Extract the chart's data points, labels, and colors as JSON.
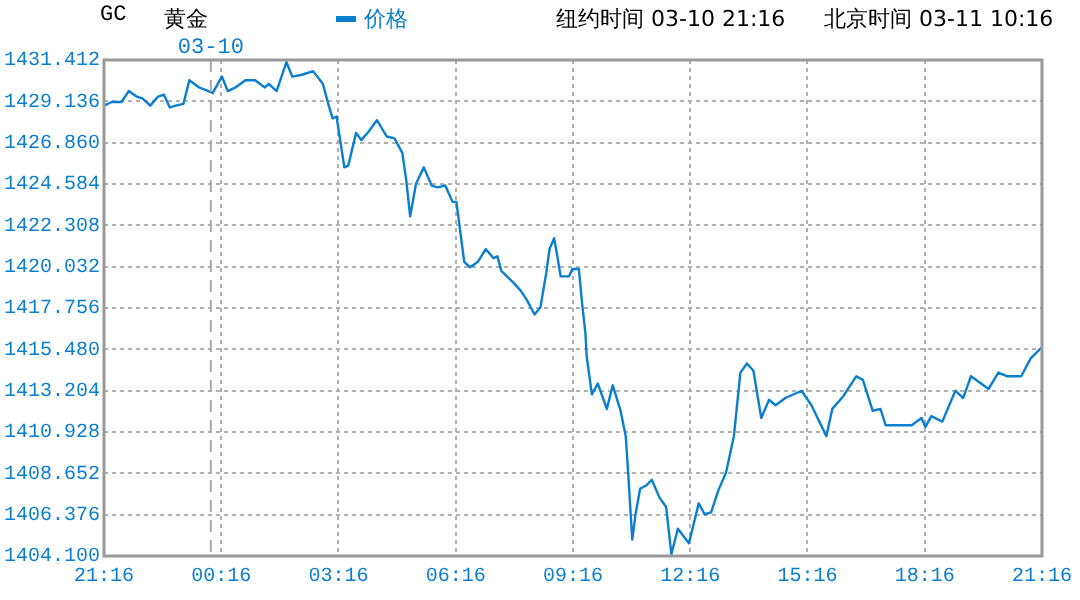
{
  "chart_data": {
    "type": "line",
    "title": "GC",
    "subtitle": "黄金",
    "annotations": [
      "纽约时间 03-10 21:16",
      "北京时间 03-11 10:16"
    ],
    "x": [
      "--03-09T21:16",
      "--03-09T21:28",
      "--03-09T21:43",
      "--03-09T21:54",
      "--03-09T22:06",
      "--03-09T22:15",
      "--03-09T22:27",
      "--03-09T22:39",
      "--03-09T22:48",
      "--03-09T22:57",
      "--03-09T23:06",
      "--03-09T23:18",
      "--03-09T23:27",
      "--03-09T23:42",
      "--03-10T00:03",
      "--03-10T00:17",
      "--03-10T00:26",
      "--03-10T00:38",
      "--03-10T00:53",
      "--03-10T01:08",
      "--03-10T01:23",
      "--03-10T01:29",
      "--03-10T01:41",
      "--03-10T01:56",
      "--03-10T02:05",
      "--03-10T02:20",
      "--03-10T02:37",
      "--03-10T02:52",
      "--03-10T03:01",
      "--03-10T03:07",
      "--03-10T03:13",
      "--03-10T03:25",
      "--03-10T03:31",
      "--03-10T03:43",
      "--03-10T03:51",
      "--03-10T04:03",
      "--03-10T04:15",
      "--03-10T04:30",
      "--03-10T04:42",
      "--03-10T04:54",
      "--03-10T05:00",
      "--03-10T05:06",
      "--03-10T05:15",
      "--03-10T05:27",
      "--03-10T05:39",
      "--03-10T05:48",
      "--03-10T06:00",
      "--03-10T06:11",
      "--03-10T06:17",
      "--03-10T06:29",
      "--03-10T06:38",
      "--03-10T06:50",
      "--03-10T07:02",
      "--03-10T07:14",
      "--03-10T07:20",
      "--03-10T07:26",
      "--03-10T07:46",
      "--03-10T07:56",
      "--03-10T08:05",
      "--03-10T08:17",
      "--03-10T08:26",
      "--03-10T08:35",
      "--03-10T08:40",
      "--03-10T08:47",
      "--03-10T08:52",
      "--03-10T08:57",
      "--03-10T09:10",
      "--03-10T09:15",
      "--03-10T09:25",
      "--03-10T09:30",
      "--03-10T09:35",
      "--03-10T09:37",
      "--03-10T09:45",
      "--03-10T09:54",
      "--03-10T10:08",
      "--03-10T10:17",
      "--03-10T10:29",
      "--03-10T10:37",
      "--03-10T10:41",
      "--03-10T10:47",
      "--03-10T10:52",
      "--03-10T10:59",
      "--03-10T11:09",
      "--03-10T11:17",
      "--03-10T11:29",
      "--03-10T11:39",
      "--03-10T11:47",
      "--03-10T11:57",
      "--03-10T12:14",
      "--03-10T12:29",
      "--03-10T12:38",
      "--03-10T12:48",
      "--03-10T12:59",
      "--03-10T13:11",
      "--03-10T13:23",
      "--03-10T13:33",
      "--03-10T13:43",
      "--03-10T13:53",
      "--03-10T14:05",
      "--03-10T14:17",
      "--03-10T14:27",
      "--03-10T14:42",
      "--03-10T15:07",
      "--03-10T15:22",
      "--03-10T15:45",
      "--03-10T15:54",
      "--03-10T16:11",
      "--03-10T16:31",
      "--03-10T16:41",
      "--03-10T16:56",
      "--03-10T17:08",
      "--03-10T17:16",
      "--03-10T17:56",
      "--03-10T18:11",
      "--03-10T18:17",
      "--03-10T18:26",
      "--03-10T18:43",
      "--03-10T19:03",
      "--03-10T19:15",
      "--03-10T19:27",
      "--03-10T19:54",
      "--03-10T20:09",
      "--03-10T20:22",
      "--03-10T20:44",
      "--03-10T20:59",
      "--03-10T21:16"
    ],
    "series": [
      {
        "name": "价格",
        "color": "#0a7fd0",
        "values": [
          1428.9,
          1429.1,
          1429.1,
          1429.7,
          1429.4,
          1429.3,
          1428.9,
          1429.4,
          1429.5,
          1428.8,
          1428.9,
          1429.0,
          1430.3,
          1429.9,
          1429.6,
          1430.5,
          1429.7,
          1429.9,
          1430.3,
          1430.3,
          1429.9,
          1430.1,
          1429.7,
          1431.3,
          1430.5,
          1430.6,
          1430.8,
          1430.1,
          1428.9,
          1428.2,
          1428.3,
          1425.5,
          1425.6,
          1427.4,
          1427.0,
          1427.5,
          1428.1,
          1427.2,
          1427.1,
          1426.3,
          1424.8,
          1422.8,
          1424.6,
          1425.5,
          1424.5,
          1424.4,
          1424.5,
          1423.6,
          1423.6,
          1420.3,
          1420.0,
          1420.3,
          1421.0,
          1420.5,
          1420.6,
          1419.8,
          1419.1,
          1418.7,
          1418.2,
          1417.4,
          1417.8,
          1419.7,
          1421.0,
          1421.6,
          1420.6,
          1419.5,
          1419.5,
          1419.9,
          1419.9,
          1418.0,
          1416.4,
          1415.1,
          1413.0,
          1413.6,
          1412.2,
          1413.5,
          1412.1,
          1410.7,
          1408.5,
          1405.0,
          1406.4,
          1407.8,
          1408.0,
          1408.3,
          1407.3,
          1406.8,
          1404.2,
          1405.6,
          1404.8,
          1407.0,
          1406.4,
          1406.5,
          1407.7,
          1408.7,
          1410.7,
          1414.2,
          1414.7,
          1414.3,
          1411.7,
          1412.7,
          1412.4,
          1412.8,
          1413.2,
          1412.4,
          1410.7,
          1412.2,
          1412.9,
          1414.0,
          1413.8,
          1412.1,
          1412.2,
          1411.3,
          1411.3,
          1411.7,
          1411.2,
          1411.8,
          1411.5,
          1413.2,
          1412.8,
          1414.0,
          1413.3,
          1414.2,
          1414.0,
          1414.0,
          1415.0,
          1415.6
        ]
      }
    ],
    "xlim": [
      "--03-09T21:16",
      "--03-10T21:16"
    ],
    "xticks": [
      {
        "value": "--03-09T21:16",
        "label": "21:16"
      },
      {
        "value": "--03-10T00:16",
        "label": "00:16"
      },
      {
        "value": "--03-10T03:16",
        "label": "03:16"
      },
      {
        "value": "--03-10T06:16",
        "label": "06:16"
      },
      {
        "value": "--03-10T09:16",
        "label": "09:16"
      },
      {
        "value": "--03-10T12:16",
        "label": "12:16"
      },
      {
        "value": "--03-10T15:16",
        "label": "15:16"
      },
      {
        "value": "--03-10T18:16",
        "label": "18:16"
      },
      {
        "value": "--03-10T21:16",
        "label": "21:16"
      }
    ],
    "ylim": [
      1404.1,
      1431.412
    ],
    "yticks": [
      {
        "value": 1404.1,
        "label": "1404.100"
      },
      1406.376,
      1408.652,
      1410.928,
      1413.204,
      {
        "value": 1415.48,
        "label": "1415.480"
      },
      1417.756,
      1420.032,
      1422.308,
      1424.584,
      {
        "value": 1426.86,
        "label": "1426.860"
      },
      1429.136,
      1431.412
    ],
    "ref_lines": [
      {
        "axis": "x",
        "value": "--03-10T00:00",
        "label": "03-10",
        "color": "#aaaaaa",
        "line_style": "dashed"
      }
    ],
    "grid": true,
    "legend": "top",
    "marker": "none",
    "line_style": "solid"
  }
}
